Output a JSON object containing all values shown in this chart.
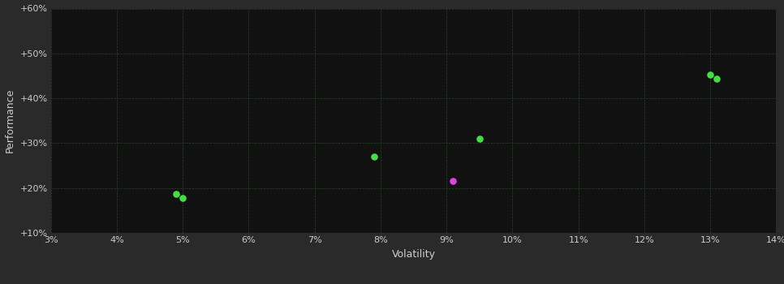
{
  "background_color": "#2a2a2a",
  "plot_bg_color": "#111111",
  "text_color": "#cccccc",
  "xlabel": "Volatility",
  "ylabel": "Performance",
  "xlim": [
    0.03,
    0.14
  ],
  "ylim": [
    0.1,
    0.6
  ],
  "xticks": [
    0.03,
    0.04,
    0.05,
    0.06,
    0.07,
    0.08,
    0.09,
    0.1,
    0.11,
    0.12,
    0.13,
    0.14
  ],
  "yticks": [
    0.1,
    0.2,
    0.3,
    0.4,
    0.5,
    0.6
  ],
  "points_green": [
    [
      0.049,
      0.187
    ],
    [
      0.05,
      0.178
    ],
    [
      0.079,
      0.27
    ],
    [
      0.095,
      0.31
    ],
    [
      0.13,
      0.452
    ],
    [
      0.131,
      0.443
    ]
  ],
  "points_magenta": [
    [
      0.091,
      0.215
    ]
  ],
  "green_color": "#44dd44",
  "magenta_color": "#dd44dd",
  "marker_size": 38,
  "axis_fontsize": 8,
  "label_fontsize": 9,
  "grid_color": "#2a4a2a",
  "grid_alpha": 0.9
}
